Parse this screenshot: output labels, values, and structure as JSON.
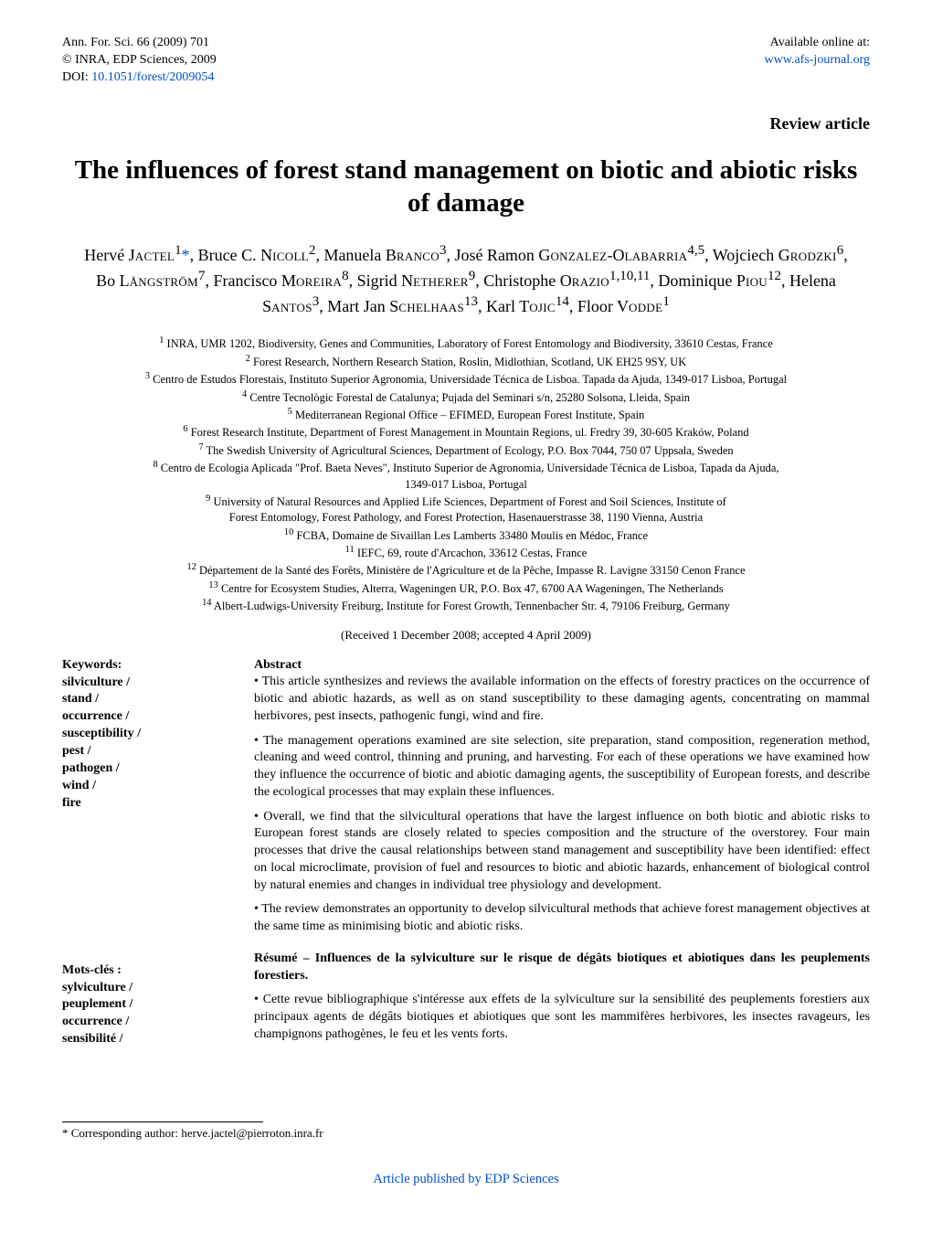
{
  "header": {
    "left_line1": "Ann. For. Sci. 66 (2009) 701",
    "left_line2": "© INRA, EDP Sciences, 2009",
    "left_line3_prefix": "DOI: ",
    "doi_text": "10.1051/forest/2009054",
    "right_line1": "Available online at:",
    "right_line2": "www.afs-journal.org"
  },
  "labels": {
    "review": "Review article",
    "abstract": "Abstract",
    "keywords": "Keywords:",
    "motscles": "Mots-clés :",
    "received": "(Received 1 December 2008; accepted 4 April 2009)"
  },
  "title": "The influences of forest stand management on biotic and abiotic risks of damage",
  "authors_html": "Hervé J<span class='sc'>actel</span><sup>1</sup><a class='sup-link' href='#'>*</a>, Bruce C. N<span class='sc'>icoll</span><sup>2</sup>, Manuela B<span class='sc'>ranco</span><sup>3</sup>, José Ramon G<span class='sc'>onzalez</span>-O<span class='sc'>labarria</span><sup>4,5</sup>, Wojciech G<span class='sc'>rodzki</span><sup>6</sup>, Bo L<span class='sc'>ångström</span><sup>7</sup>, Francisco M<span class='sc'>oreira</span><sup>8</sup>, Sigrid N<span class='sc'>etherer</span><sup>9</sup>, Christophe O<span class='sc'>razio</span><sup>1,10,11</sup>, Dominique P<span class='sc'>iou</span><sup>12</sup>, Helena S<span class='sc'>antos</span><sup>3</sup>, Mart Jan S<span class='sc'>chelhaas</span><sup>13</sup>, Karl T<span class='sc'>ojic</span><sup>14</sup>, Floor V<span class='sc'>odde</span><sup>1</sup>",
  "affiliations": {
    "a1": "INRA, UMR 1202, Biodiversity, Genes and Communities, Laboratory of Forest Entomology and Biodiversity, 33610 Cestas, France",
    "a2": "Forest Research, Northern Research Station, Roslin, Midlothian, Scotland, UK EH25 9SY, UK",
    "a3": "Centro de Estudos Florestais, Instituto Superior Agronomia, Universidade Técnica de Lisboa. Tapada da Ajuda, 1349-017 Lisboa, Portugal",
    "a4": "Centre Tecnològic Forestal de Catalunya; Pujada del Seminari s/n, 25280 Solsona, Lleida, Spain",
    "a5": "Mediterranean Regional Office – EFIMED, European Forest Institute, Spain",
    "a6": "Forest Research Institute, Department of Forest Management in Mountain Regions, ul. Fredry 39, 30-605 Kraków, Poland",
    "a7": "The Swedish University of Agricultural Sciences, Department of Ecology, P.O. Box 7044, 750 07 Uppsala, Sweden",
    "a8a": "Centro de Ecologia Aplicada \"Prof. Baeta Neves\", Instituto Superior de Agronomia, Universidade Técnica de Lisboa, Tapada da Ajuda,",
    "a8b": "1349-017 Lisboa, Portugal",
    "a9a": "University of Natural Resources and Applied Life Sciences, Department of Forest and Soil Sciences, Institute of",
    "a9b": "Forest Entomology, Forest Pathology, and Forest Protection, Hasenauerstrasse 38, 1190 Vienna, Austria",
    "a10": "FCBA, Domaine de Sivaillan Les Lamberts 33480 Moulis en Médoc, France",
    "a11": "IEFC, 69, route d'Arcachon, 33612 Cestas, France",
    "a12": "Département de la Santé des Forêts, Ministère de l'Agriculture et de la Pêche, Impasse R. Lavigne 33150 Cenon France",
    "a13": "Centre for Ecosystem Studies, Alterra, Wageningen UR, P.O. Box 47, 6700 AA Wageningen, The Netherlands",
    "a14": "Albert-Ludwigs-University Freiburg, Institute for Forest Growth, Tennenbacher Str. 4, 79106 Freiburg, Germany"
  },
  "keywords_en": {
    "k1": "silviculture /",
    "k2": "stand /",
    "k3": "occurrence /",
    "k4": "susceptibility /",
    "k5": "pest /",
    "k6": "pathogen /",
    "k7": "wind /",
    "k8": "fire"
  },
  "keywords_fr": {
    "k1": "sylviculture /",
    "k2": "peuplement /",
    "k3": "occurrence /",
    "k4": "sensibilité /"
  },
  "abstract": {
    "p1": "• This article synthesizes and reviews the available information on the effects of forestry practices on the occurrence of biotic and abiotic hazards, as well as on stand susceptibility to these damaging agents, concentrating on mammal herbivores, pest insects, pathogenic fungi, wind and fire.",
    "p2": "• The management operations examined are site selection, site preparation, stand composition, regeneration method, cleaning and weed control, thinning and pruning, and harvesting. For each of these operations we have examined how they influence the occurrence of biotic and abiotic damaging agents, the susceptibility of European forests, and describe the ecological processes that may explain these influences.",
    "p3": "• Overall, we find that the silvicultural operations that have the largest influence on both biotic and abiotic risks to European forest stands are closely related to species composition and the structure of the overstorey. Four main processes that drive the causal relationships between stand management and susceptibility have been identified: effect on local microclimate, provision of fuel and resources to biotic and abiotic hazards, enhancement of biological control by natural enemies and changes in individual tree physiology and development.",
    "p4": "• The review demonstrates an opportunity to develop silvicultural methods that achieve forest management objectives at the same time as minimising biotic and abiotic risks."
  },
  "resume": {
    "title": "Résumé – Influences de la sylviculture sur le risque de dégâts biotiques et abiotiques dans les peuplements forestiers.",
    "p1": "• Cette revue bibliographique s'intéresse aux effets de la sylviculture sur la sensibilité des peuplements forestiers aux principaux agents de dégâts biotiques et abiotiques que sont les mammifères herbivores, les insectes ravageurs, les champignons pathogènes, le feu et les vents forts."
  },
  "footnote": "* Corresponding author: herve.jactel@pierroton.inra.fr",
  "bottom_link": "Article published by EDP Sciences"
}
